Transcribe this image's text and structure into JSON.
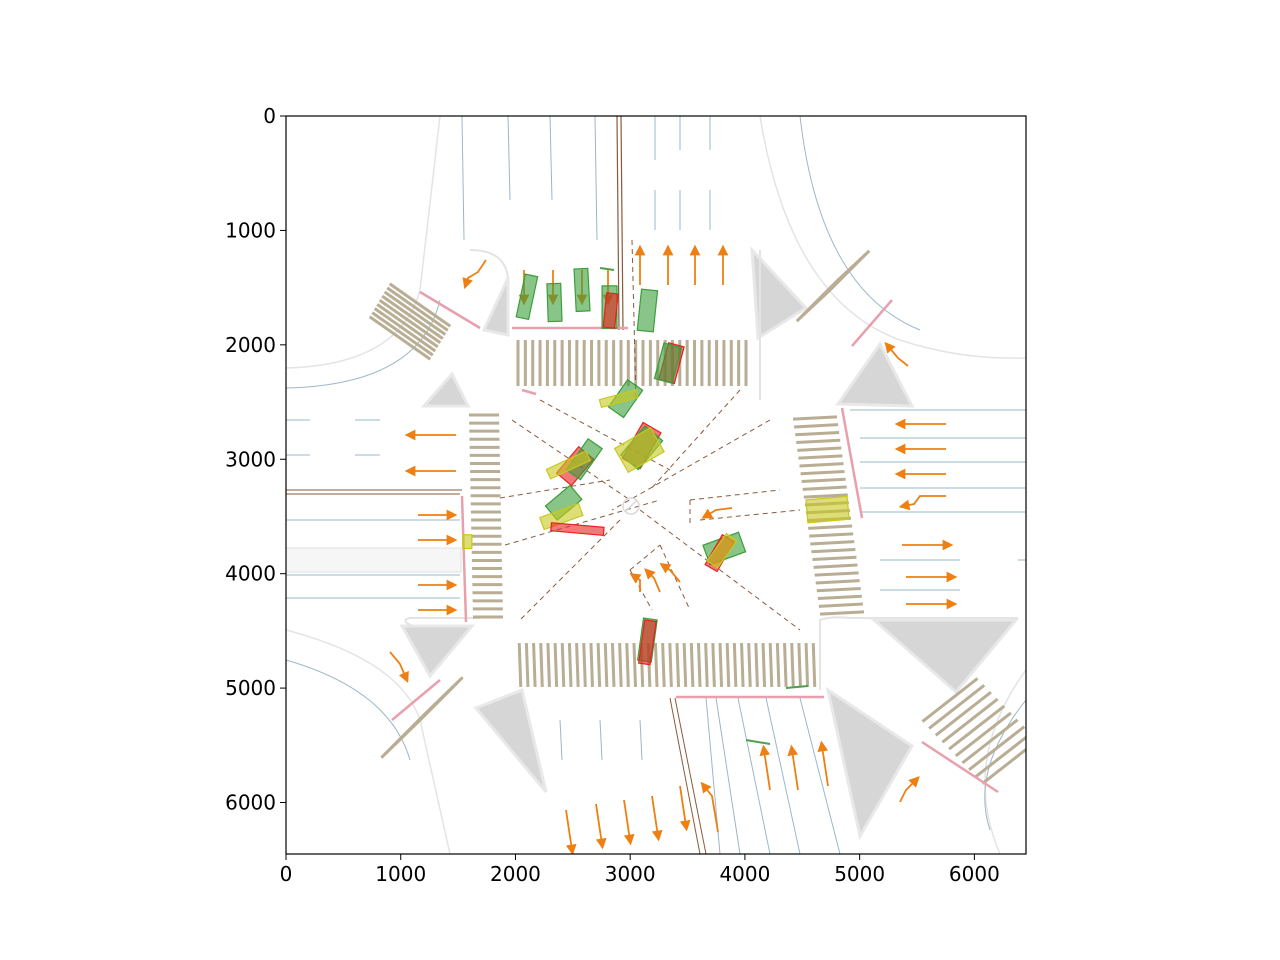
{
  "chart_data": {
    "type": "scatter",
    "title": "",
    "xlabel": "",
    "ylabel": "",
    "xlim": [
      0,
      6450
    ],
    "ylim": [
      6450,
      0
    ],
    "y_axis_inverted": true,
    "grid": false,
    "x_ticks": [
      {
        "value": 0,
        "label": "0"
      },
      {
        "value": 1000,
        "label": "1000"
      },
      {
        "value": 2000,
        "label": "2000"
      },
      {
        "value": 3000,
        "label": "3000"
      },
      {
        "value": 4000,
        "label": "4000"
      },
      {
        "value": 5000,
        "label": "5000"
      },
      {
        "value": 6000,
        "label": "6000"
      }
    ],
    "y_ticks": [
      {
        "value": 0,
        "label": "0"
      },
      {
        "value": 1000,
        "label": "1000"
      },
      {
        "value": 2000,
        "label": "2000"
      },
      {
        "value": 3000,
        "label": "3000"
      },
      {
        "value": 4000,
        "label": "4000"
      },
      {
        "value": 5000,
        "label": "5000"
      },
      {
        "value": 6000,
        "label": "6000"
      }
    ],
    "background": "intersection map: crosswalks, lane lines, lane direction arrows, traffic islands",
    "colors": {
      "green_boxes": "#3a9e3a",
      "red_boxes": "#e8201e",
      "yellow_boxes": "#c8c81e",
      "crosswalk": "#b9ad94",
      "lane_line": "#9ab8c8",
      "stop_line": "#e8a0ac",
      "arrow": "#ee7f12",
      "island": "#d6d6d6",
      "dashed_path": "#8a5a3c"
    },
    "boxes": [
      {
        "color": "green",
        "cx": 2100,
        "cy": 1580,
        "w": 110,
        "h": 380,
        "angle": 12
      },
      {
        "color": "green",
        "cx": 2340,
        "cy": 1630,
        "w": 120,
        "h": 330,
        "angle": -2
      },
      {
        "color": "green",
        "cx": 2580,
        "cy": 1520,
        "w": 120,
        "h": 370,
        "angle": -3
      },
      {
        "color": "green",
        "cx": 2820,
        "cy": 1670,
        "w": 130,
        "h": 370,
        "angle": 0
      },
      {
        "color": "red",
        "cx": 2830,
        "cy": 1700,
        "w": 100,
        "h": 300,
        "angle": 6
      },
      {
        "color": "green",
        "cx": 3150,
        "cy": 1700,
        "w": 140,
        "h": 360,
        "angle": 6
      },
      {
        "color": "red",
        "cx": 3360,
        "cy": 2160,
        "w": 140,
        "h": 330,
        "angle": 15
      },
      {
        "color": "green",
        "cx": 3330,
        "cy": 2160,
        "w": 160,
        "h": 320,
        "angle": 15
      },
      {
        "color": "green",
        "cx": 2960,
        "cy": 2470,
        "w": 160,
        "h": 290,
        "angle": 35
      },
      {
        "color": "yellow",
        "cx": 2900,
        "cy": 2470,
        "w": 330,
        "h": 70,
        "angle": -15
      },
      {
        "color": "red",
        "cx": 3100,
        "cy": 2880,
        "w": 180,
        "h": 360,
        "angle": 30
      },
      {
        "color": "green",
        "cx": 3100,
        "cy": 2900,
        "w": 200,
        "h": 330,
        "angle": 40
      },
      {
        "color": "yellow",
        "cx": 3080,
        "cy": 2920,
        "w": 360,
        "h": 240,
        "angle": -30
      },
      {
        "color": "red",
        "cx": 2520,
        "cy": 3060,
        "w": 170,
        "h": 300,
        "angle": 40
      },
      {
        "color": "green",
        "cx": 2600,
        "cy": 3000,
        "w": 150,
        "h": 330,
        "angle": 35
      },
      {
        "color": "yellow",
        "cx": 2460,
        "cy": 3050,
        "w": 380,
        "h": 90,
        "angle": -25
      },
      {
        "color": "green",
        "cx": 2420,
        "cy": 3380,
        "w": 160,
        "h": 280,
        "angle": 50
      },
      {
        "color": "yellow",
        "cx": 2400,
        "cy": 3500,
        "w": 360,
        "h": 110,
        "angle": -20
      },
      {
        "color": "red",
        "cx": 2540,
        "cy": 3610,
        "w": 460,
        "h": 70,
        "angle": 5
      },
      {
        "color": "green",
        "cx": 3820,
        "cy": 3780,
        "w": 330,
        "h": 180,
        "angle": -20
      },
      {
        "color": "red",
        "cx": 3780,
        "cy": 3820,
        "w": 120,
        "h": 300,
        "angle": 30
      },
      {
        "color": "yellow",
        "cx": 3800,
        "cy": 3800,
        "w": 110,
        "h": 290,
        "angle": 35
      },
      {
        "color": "yellow",
        "cx": 4720,
        "cy": 3440,
        "w": 360,
        "h": 200,
        "angle": -5
      },
      {
        "color": "yellow",
        "cx": 1580,
        "cy": 3720,
        "w": 80,
        "h": 120,
        "angle": 0
      },
      {
        "color": "green",
        "cx": 3150,
        "cy": 4580,
        "w": 120,
        "h": 370,
        "angle": 8
      },
      {
        "color": "red",
        "cx": 3150,
        "cy": 4600,
        "w": 100,
        "h": 380,
        "angle": 8
      }
    ]
  }
}
